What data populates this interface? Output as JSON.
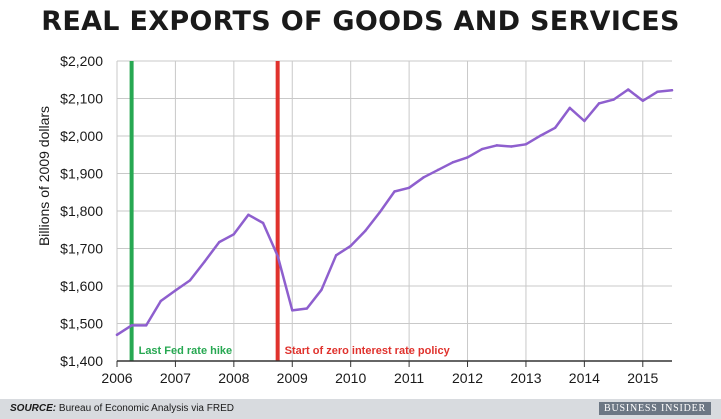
{
  "chart_data": {
    "type": "line",
    "title": "REAL EXPORTS OF GOODS AND SERVICES",
    "ylabel": "Billions of 2009 dollars",
    "xlabel": "",
    "ylim": [
      1400,
      2200
    ],
    "xlim": [
      2006.0,
      2015.5
    ],
    "yticks": [
      "$1,400",
      "$1,500",
      "$1,600",
      "$1,700",
      "$1,800",
      "$1,900",
      "$2,000",
      "$2,100",
      "$2,200"
    ],
    "ytick_values": [
      1400,
      1500,
      1600,
      1700,
      1800,
      1900,
      2000,
      2100,
      2200
    ],
    "xticks": [
      "2006",
      "2007",
      "2008",
      "2009",
      "2010",
      "2011",
      "2012",
      "2013",
      "2014",
      "2015"
    ],
    "xtick_values": [
      2006,
      2007,
      2008,
      2009,
      2010,
      2011,
      2012,
      2013,
      2014,
      2015
    ],
    "grid": true,
    "series": [
      {
        "color": "#8e5fce",
        "x": [
          2006.0,
          2006.25,
          2006.5,
          2006.75,
          2007.0,
          2007.25,
          2007.5,
          2007.75,
          2008.0,
          2008.25,
          2008.5,
          2008.75,
          2009.0,
          2009.25,
          2009.5,
          2009.75,
          2010.0,
          2010.25,
          2010.5,
          2010.75,
          2011.0,
          2011.25,
          2011.5,
          2011.75,
          2012.0,
          2012.25,
          2012.5,
          2012.75,
          2013.0,
          2013.25,
          2013.5,
          2013.75,
          2014.0,
          2014.25,
          2014.5,
          2014.75,
          2015.0,
          2015.25,
          2015.5
        ],
        "values": [
          1470,
          1495,
          1495,
          1560,
          1588,
          1615,
          1665,
          1717,
          1738,
          1790,
          1768,
          1680,
          1535,
          1540,
          1590,
          1682,
          1707,
          1747,
          1797,
          1852,
          1862,
          1890,
          1910,
          1930,
          1943,
          1965,
          1975,
          1972,
          1978,
          2001,
          2022,
          2075,
          2040,
          2087,
          2097,
          2124,
          2094,
          2118,
          2122
        ]
      }
    ],
    "annotations": [
      {
        "x": 2006.25,
        "label": "Last Fed rate hike",
        "color": "#27a852"
      },
      {
        "x": 2008.75,
        "label": "Start of zero interest rate policy",
        "color": "#e0322d"
      }
    ]
  },
  "footer": {
    "source_prefix": "SOURCE:",
    "source_text": " Bureau of Economic Analysis via FRED",
    "logo": "BUSINESS INSIDER"
  }
}
